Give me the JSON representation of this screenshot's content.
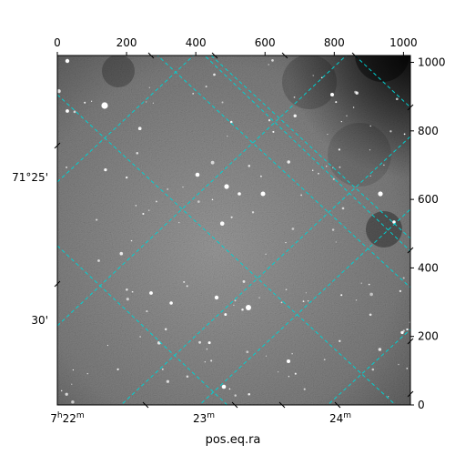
{
  "chart_data": {
    "type": "image",
    "title": "",
    "xlabel": "pos.eq.ra",
    "ylabel": "",
    "pixel_axes": {
      "x_range": [
        0,
        1020
      ],
      "y_range": [
        0,
        1020
      ],
      "top_ticks": [
        "0",
        "200",
        "400",
        "600",
        "800",
        "1000"
      ],
      "right_ticks": [
        "0",
        "200",
        "400",
        "600",
        "800",
        "1000"
      ]
    },
    "world_axes": {
      "ra_ticks": [
        "7h22m",
        "23m",
        "24m"
      ],
      "dec_ticks": [
        "71°25'",
        "30'"
      ]
    },
    "grid": true,
    "grid_color": "#00d0d0",
    "colormap": "greyscale"
  }
}
